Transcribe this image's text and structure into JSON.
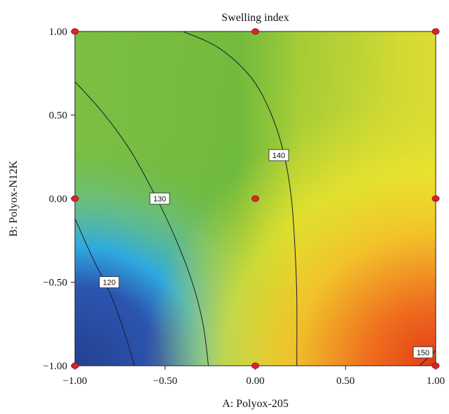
{
  "chart_data": {
    "type": "heatmap",
    "subtype": "contour",
    "title": "Swelling index",
    "xlabel": "A: Polyox-205",
    "ylabel": "B: Polyox-N12K",
    "xlim": [
      -1.0,
      1.0
    ],
    "ylim": [
      -1.0,
      1.0
    ],
    "xticks": [
      "−1.00",
      "−0.50",
      "0.00",
      "0.50",
      "1.00"
    ],
    "yticks": [
      "1.00",
      "0.50",
      "0.00",
      "−0.50",
      "−1.00"
    ],
    "xtick_values": [
      -1.0,
      -0.5,
      0.0,
      0.5,
      1.0
    ],
    "ytick_values": [
      1.0,
      0.5,
      0.0,
      -0.5,
      -1.0
    ],
    "grid": false,
    "colormap": [
      "#2c4aa8",
      "#2fa8e6",
      "#6fbf4a",
      "#c8d630",
      "#f0e22a",
      "#f28a1e",
      "#e8441a"
    ],
    "contours": [
      {
        "level": 120,
        "label": "120",
        "points": [
          [
            -1.0,
            -0.12
          ],
          [
            -0.9,
            -0.36
          ],
          [
            -0.8,
            -0.58
          ],
          [
            -0.72,
            -0.82
          ],
          [
            -0.67,
            -1.0
          ]
        ],
        "label_at": [
          -0.81,
          -0.5
        ]
      },
      {
        "level": 130,
        "label": "130",
        "points": [
          [
            -1.0,
            0.7
          ],
          [
            -0.85,
            0.52
          ],
          [
            -0.7,
            0.3
          ],
          [
            -0.57,
            0.05
          ],
          [
            -0.45,
            -0.22
          ],
          [
            -0.35,
            -0.5
          ],
          [
            -0.29,
            -0.75
          ],
          [
            -0.26,
            -1.0
          ]
        ],
        "label_at": [
          -0.53,
          0.0
        ]
      },
      {
        "level": 140,
        "label": "140",
        "points": [
          [
            -0.4,
            1.0
          ],
          [
            -0.2,
            0.9
          ],
          [
            -0.02,
            0.72
          ],
          [
            0.09,
            0.5
          ],
          [
            0.16,
            0.26
          ],
          [
            0.2,
            0.0
          ],
          [
            0.22,
            -0.3
          ],
          [
            0.23,
            -0.6
          ],
          [
            0.23,
            -1.0
          ]
        ],
        "label_at": [
          0.13,
          0.26
        ]
      },
      {
        "level": 150,
        "label": "150",
        "points": [
          [
            0.91,
            -1.0
          ],
          [
            0.98,
            -0.93
          ],
          [
            1.0,
            -0.91
          ]
        ],
        "label_at": [
          0.93,
          -0.92
        ]
      }
    ],
    "design_points": [
      [
        -1.0,
        1.0
      ],
      [
        0.0,
        1.0
      ],
      [
        1.0,
        1.0
      ],
      [
        -1.0,
        0.0
      ],
      [
        0.0,
        0.0
      ],
      [
        1.0,
        0.0
      ],
      [
        -1.0,
        -1.0
      ],
      [
        0.0,
        -1.0
      ],
      [
        1.0,
        -1.0
      ]
    ]
  }
}
